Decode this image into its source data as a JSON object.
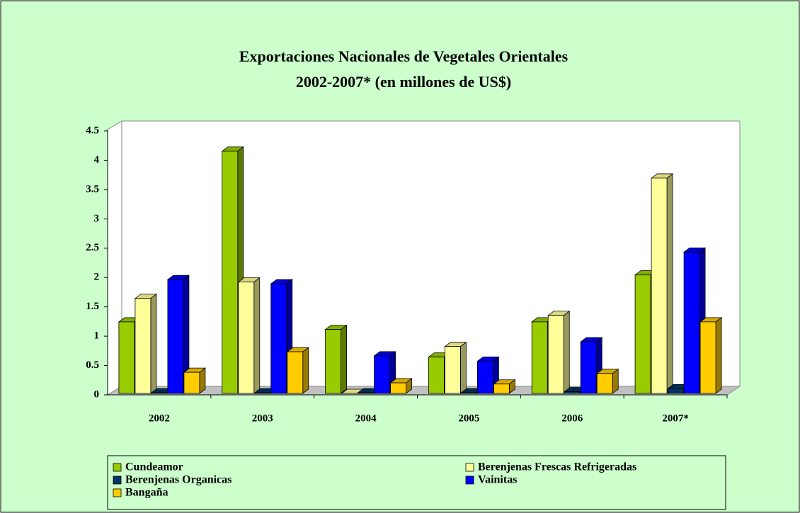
{
  "chart_data": {
    "type": "bar3d",
    "title": "Exportaciones Nacionales de Vegetales Orientales",
    "subtitle": "2002-2007* (en millones de US$)",
    "categories": [
      "2002",
      "2003",
      "2004",
      "2005",
      "2006",
      "2007*"
    ],
    "series": [
      {
        "name": "Cundeamor",
        "color": "#99cc00",
        "values": [
          1.22,
          4.13,
          1.09,
          0.62,
          1.22,
          2.02
        ]
      },
      {
        "name": "Berenjenas Frescas Refrigeradas",
        "color": "#ffff99",
        "values": [
          1.62,
          1.9,
          0,
          0.8,
          1.33,
          3.67
        ]
      },
      {
        "name": "Berenjenas Organicas",
        "color": "#003366",
        "values": [
          0.01,
          0.01,
          0.01,
          0.01,
          0.03,
          0.08
        ]
      },
      {
        "name": "Vainitas",
        "color": "#0000ff",
        "values": [
          1.94,
          1.87,
          0.64,
          0.55,
          0.88,
          2.41
        ]
      },
      {
        "name": "Bangaña",
        "color": "#ffcc00",
        "values": [
          0.36,
          0.71,
          0.18,
          0.16,
          0.34,
          1.22
        ]
      }
    ],
    "ylim": [
      0,
      4.5
    ],
    "yticks": [
      0,
      0.5,
      1,
      1.5,
      2,
      2.5,
      3,
      3.5,
      4,
      4.5
    ],
    "legend": "bottom"
  }
}
